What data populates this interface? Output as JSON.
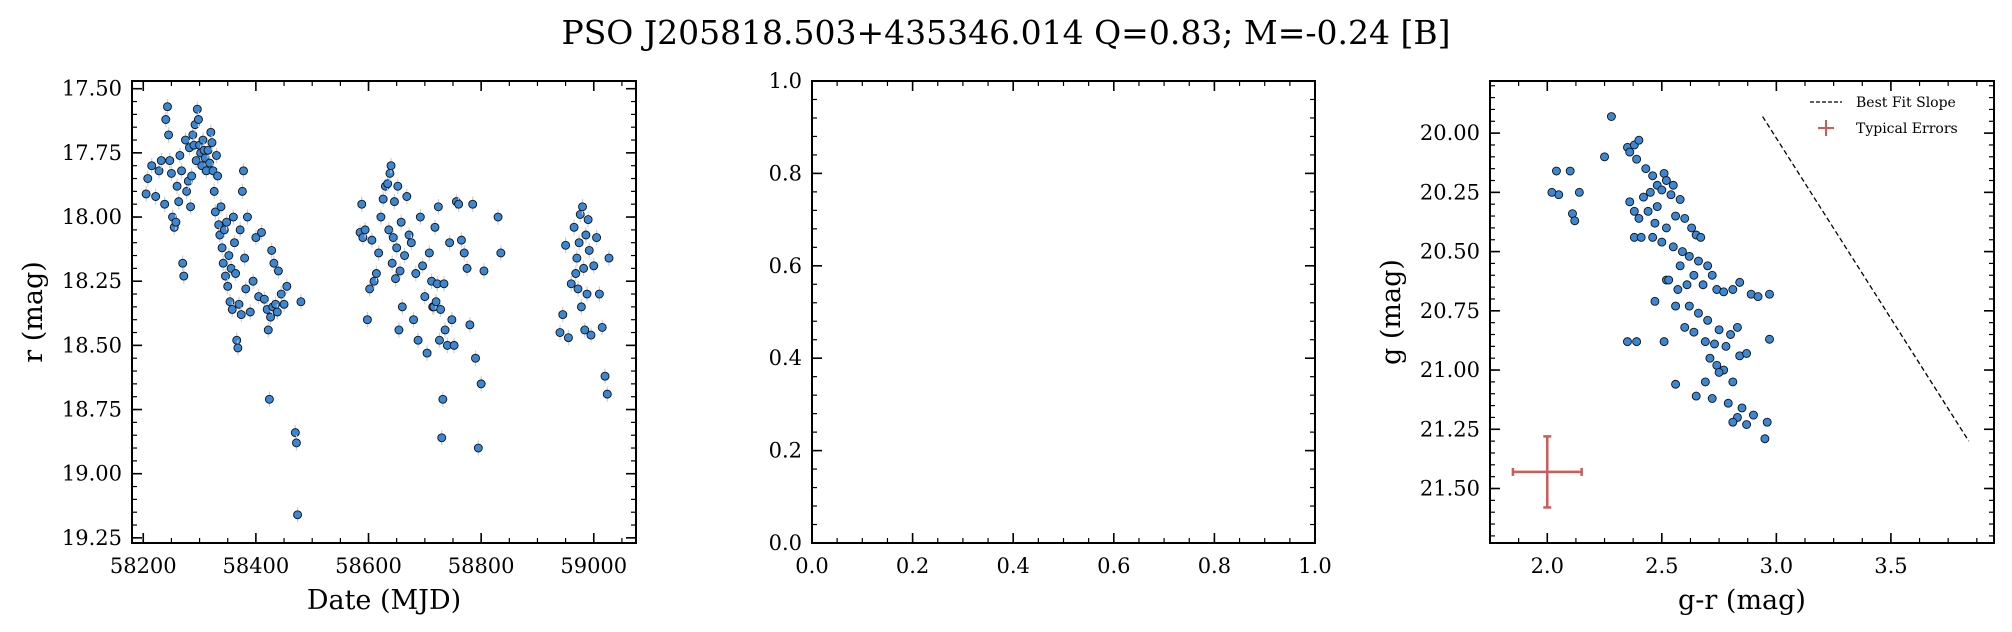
{
  "figure_title": "PSO J205818.503+435346.014  Q=0.83; M=-0.24 [B]",
  "colors": {
    "point_fill": "#3a87d6",
    "point_edge": "#111111",
    "error_bar": "#d0d0d0",
    "typical_error": "#d05a5a"
  },
  "chart_data": [
    {
      "type": "scatter",
      "xlabel": "Date (MJD)",
      "ylabel": "r (mag)",
      "xlim": [
        58180,
        59075
      ],
      "ylim": [
        19.27,
        17.47
      ],
      "y_inverted": true,
      "xticks": [
        58200,
        58400,
        58600,
        58800,
        59000
      ],
      "xtick_labels": [
        "58200",
        "58400",
        "58600",
        "58800",
        "59000"
      ],
      "yticks": [
        17.5,
        17.75,
        18.0,
        18.25,
        18.5,
        18.75,
        19.0,
        19.25
      ],
      "ytick_labels": [
        "17.50",
        "17.75",
        "18.00",
        "18.25",
        "18.50",
        "18.75",
        "19.00",
        "19.25"
      ],
      "points": [
        [
          58205,
          17.91
        ],
        [
          58208,
          17.85
        ],
        [
          58215,
          17.8
        ],
        [
          58222,
          17.92
        ],
        [
          58228,
          17.82
        ],
        [
          58232,
          17.78
        ],
        [
          58238,
          17.95
        ],
        [
          58240,
          17.62
        ],
        [
          58243,
          17.57
        ],
        [
          58245,
          17.68
        ],
        [
          58247,
          17.78
        ],
        [
          58250,
          17.83
        ],
        [
          58252,
          18.0
        ],
        [
          58255,
          18.04
        ],
        [
          58258,
          18.02
        ],
        [
          58260,
          17.88
        ],
        [
          58263,
          17.94
        ],
        [
          58265,
          17.76
        ],
        [
          58268,
          17.82
        ],
        [
          58270,
          18.18
        ],
        [
          58272,
          18.23
        ],
        [
          58275,
          17.7
        ],
        [
          58277,
          17.9
        ],
        [
          58280,
          17.86
        ],
        [
          58282,
          17.73
        ],
        [
          58284,
          17.96
        ],
        [
          58286,
          17.84
        ],
        [
          58288,
          17.68
        ],
        [
          58290,
          17.72
        ],
        [
          58292,
          17.64
        ],
        [
          58294,
          17.78
        ],
        [
          58296,
          17.58
        ],
        [
          58298,
          17.62
        ],
        [
          58300,
          17.72
        ],
        [
          58302,
          17.75
        ],
        [
          58304,
          17.8
        ],
        [
          58306,
          17.7
        ],
        [
          58308,
          17.74
        ],
        [
          58310,
          17.77
        ],
        [
          58312,
          17.82
        ],
        [
          58315,
          17.74
        ],
        [
          58318,
          17.79
        ],
        [
          58320,
          17.67
        ],
        [
          58322,
          17.71
        ],
        [
          58324,
          17.82
        ],
        [
          58326,
          17.9
        ],
        [
          58328,
          17.98
        ],
        [
          58330,
          17.76
        ],
        [
          58332,
          17.84
        ],
        [
          58334,
          18.03
        ],
        [
          58336,
          18.07
        ],
        [
          58338,
          17.96
        ],
        [
          58340,
          18.12
        ],
        [
          58342,
          18.18
        ],
        [
          58344,
          18.05
        ],
        [
          58346,
          18.23
        ],
        [
          58348,
          18.02
        ],
        [
          58350,
          18.27
        ],
        [
          58352,
          18.15
        ],
        [
          58354,
          18.33
        ],
        [
          58356,
          18.2
        ],
        [
          58358,
          18.36
        ],
        [
          58360,
          18.0
        ],
        [
          58362,
          18.1
        ],
        [
          58364,
          18.22
        ],
        [
          58366,
          18.48
        ],
        [
          58368,
          18.51
        ],
        [
          58370,
          18.34
        ],
        [
          58372,
          18.05
        ],
        [
          58374,
          18.38
        ],
        [
          58376,
          17.9
        ],
        [
          58378,
          17.82
        ],
        [
          58380,
          18.16
        ],
        [
          58382,
          18.28
        ],
        [
          58385,
          18.0
        ],
        [
          58390,
          18.37
        ],
        [
          58395,
          18.25
        ],
        [
          58400,
          18.08
        ],
        [
          58405,
          18.31
        ],
        [
          58410,
          18.06
        ],
        [
          58415,
          18.32
        ],
        [
          58420,
          18.36
        ],
        [
          58422,
          18.44
        ],
        [
          58424,
          18.71
        ],
        [
          58426,
          18.39
        ],
        [
          58428,
          18.13
        ],
        [
          58430,
          18.35
        ],
        [
          58432,
          18.18
        ],
        [
          58435,
          18.34
        ],
        [
          58438,
          18.37
        ],
        [
          58440,
          18.21
        ],
        [
          58445,
          18.3
        ],
        [
          58450,
          18.34
        ],
        [
          58455,
          18.27
        ],
        [
          58470,
          18.84
        ],
        [
          58472,
          18.88
        ],
        [
          58474,
          19.16
        ],
        [
          58480,
          18.33
        ],
        [
          58585,
          18.06
        ],
        [
          58588,
          17.95
        ],
        [
          58590,
          18.08
        ],
        [
          58594,
          18.05
        ],
        [
          58598,
          18.4
        ],
        [
          58602,
          18.28
        ],
        [
          58606,
          18.09
        ],
        [
          58610,
          18.25
        ],
        [
          58614,
          18.22
        ],
        [
          58618,
          18.14
        ],
        [
          58622,
          18.0
        ],
        [
          58626,
          17.93
        ],
        [
          58630,
          17.88
        ],
        [
          58634,
          17.87
        ],
        [
          58636,
          18.05
        ],
        [
          58638,
          17.83
        ],
        [
          58640,
          17.8
        ],
        [
          58642,
          18.18
        ],
        [
          58644,
          18.08
        ],
        [
          58646,
          17.94
        ],
        [
          58648,
          18.24
        ],
        [
          58650,
          18.12
        ],
        [
          58652,
          17.88
        ],
        [
          58654,
          18.44
        ],
        [
          58656,
          18.21
        ],
        [
          58658,
          18.02
        ],
        [
          58660,
          18.35
        ],
        [
          58664,
          18.15
        ],
        [
          58668,
          17.92
        ],
        [
          58672,
          18.07
        ],
        [
          58676,
          18.1
        ],
        [
          58680,
          18.4
        ],
        [
          58684,
          18.22
        ],
        [
          58688,
          18.48
        ],
        [
          58692,
          18.0
        ],
        [
          58696,
          18.19
        ],
        [
          58700,
          18.31
        ],
        [
          58704,
          18.53
        ],
        [
          58708,
          18.14
        ],
        [
          58712,
          18.25
        ],
        [
          58714,
          18.35
        ],
        [
          58716,
          18.35
        ],
        [
          58718,
          18.04
        ],
        [
          58720,
          18.33
        ],
        [
          58722,
          18.26
        ],
        [
          58724,
          17.96
        ],
        [
          58726,
          18.48
        ],
        [
          58728,
          18.36
        ],
        [
          58730,
          18.86
        ],
        [
          58732,
          18.71
        ],
        [
          58734,
          18.26
        ],
        [
          58736,
          18.44
        ],
        [
          58740,
          18.5
        ],
        [
          58744,
          18.1
        ],
        [
          58748,
          18.4
        ],
        [
          58752,
          18.5
        ],
        [
          58756,
          17.94
        ],
        [
          58760,
          17.95
        ],
        [
          58765,
          18.09
        ],
        [
          58770,
          18.14
        ],
        [
          58775,
          18.2
        ],
        [
          58780,
          18.42
        ],
        [
          58785,
          17.95
        ],
        [
          58790,
          18.55
        ],
        [
          58795,
          18.9
        ],
        [
          58800,
          18.65
        ],
        [
          58805,
          18.21
        ],
        [
          58830,
          18.0
        ],
        [
          58835,
          18.14
        ],
        [
          58940,
          18.45
        ],
        [
          58945,
          18.38
        ],
        [
          58950,
          18.11
        ],
        [
          58955,
          18.47
        ],
        [
          58960,
          18.26
        ],
        [
          58965,
          18.04
        ],
        [
          58968,
          18.22
        ],
        [
          58970,
          18.16
        ],
        [
          58972,
          18.28
        ],
        [
          58974,
          18.1
        ],
        [
          58976,
          17.99
        ],
        [
          58978,
          18.35
        ],
        [
          58980,
          17.96
        ],
        [
          58982,
          18.2
        ],
        [
          58984,
          18.44
        ],
        [
          58986,
          18.07
        ],
        [
          58988,
          18.3
        ],
        [
          58990,
          18.01
        ],
        [
          58992,
          18.13
        ],
        [
          58995,
          18.46
        ],
        [
          59000,
          18.19
        ],
        [
          59005,
          18.08
        ],
        [
          59010,
          18.3
        ],
        [
          59015,
          18.43
        ],
        [
          59020,
          18.62
        ],
        [
          59024,
          18.69
        ],
        [
          59027,
          18.16
        ]
      ]
    },
    {
      "type": "scatter",
      "xlim": [
        0,
        1
      ],
      "ylim": [
        0,
        1
      ],
      "xticks": [
        0,
        0.2,
        0.4,
        0.6,
        0.8,
        1.0
      ],
      "xtick_labels": [
        "0.0",
        "0.2",
        "0.4",
        "0.6",
        "0.8",
        "1.0"
      ],
      "yticks": [
        0,
        0.2,
        0.4,
        0.6,
        0.8,
        1.0
      ],
      "ytick_labels": [
        "0.0",
        "0.2",
        "0.4",
        "0.6",
        "0.8",
        "1.0"
      ],
      "points": []
    },
    {
      "type": "scatter",
      "xlabel": "g-r (mag)",
      "ylabel": "g (mag)",
      "xlim": [
        1.75,
        3.95
      ],
      "ylim": [
        21.73,
        19.78
      ],
      "y_inverted": true,
      "xticks": [
        2.0,
        2.5,
        3.0,
        3.5
      ],
      "xtick_labels": [
        "2.0",
        "2.5",
        "3.0",
        "3.5"
      ],
      "yticks": [
        20.0,
        20.25,
        20.5,
        20.75,
        21.0,
        21.25,
        21.5
      ],
      "ytick_labels": [
        "20.00",
        "20.25",
        "20.50",
        "20.75",
        "21.00",
        "21.25",
        "21.50"
      ],
      "legend_position": "top-right",
      "legend": [
        {
          "label": "Best Fit Slope",
          "style": "dashed-line"
        },
        {
          "label": "Typical Errors",
          "style": "errorbar"
        }
      ],
      "best_fit_line": [
        [
          2.94,
          19.93
        ],
        [
          3.84,
          21.3
        ]
      ],
      "typical_error": {
        "x": 2.0,
        "y": 21.43,
        "xerr": 0.15,
        "yerr": 0.15
      },
      "points": [
        [
          2.28,
          19.93
        ],
        [
          2.35,
          20.06
        ],
        [
          2.36,
          20.08
        ],
        [
          2.38,
          20.05
        ],
        [
          2.4,
          20.03
        ],
        [
          2.39,
          20.11
        ],
        [
          2.25,
          20.1
        ],
        [
          2.43,
          20.15
        ],
        [
          2.46,
          20.18
        ],
        [
          2.48,
          20.22
        ],
        [
          2.51,
          20.17
        ],
        [
          2.52,
          20.2
        ],
        [
          2.55,
          20.22
        ],
        [
          2.5,
          20.24
        ],
        [
          2.54,
          20.26
        ],
        [
          2.58,
          20.28
        ],
        [
          2.45,
          20.25
        ],
        [
          2.42,
          20.27
        ],
        [
          2.44,
          20.33
        ],
        [
          2.48,
          20.31
        ],
        [
          2.36,
          20.29
        ],
        [
          2.38,
          20.33
        ],
        [
          2.4,
          20.36
        ],
        [
          2.47,
          20.38
        ],
        [
          2.52,
          20.4
        ],
        [
          2.56,
          20.35
        ],
        [
          2.6,
          20.36
        ],
        [
          2.63,
          20.4
        ],
        [
          2.65,
          20.43
        ],
        [
          2.67,
          20.44
        ],
        [
          2.38,
          20.44
        ],
        [
          2.41,
          20.44
        ],
        [
          2.46,
          20.44
        ],
        [
          2.5,
          20.46
        ],
        [
          2.55,
          20.48
        ],
        [
          2.59,
          20.5
        ],
        [
          2.62,
          20.52
        ],
        [
          2.58,
          20.56
        ],
        [
          2.66,
          20.54
        ],
        [
          2.7,
          20.56
        ],
        [
          2.72,
          20.6
        ],
        [
          2.52,
          20.62
        ],
        [
          2.53,
          20.62
        ],
        [
          2.57,
          20.66
        ],
        [
          2.61,
          20.64
        ],
        [
          2.64,
          20.6
        ],
        [
          2.68,
          20.64
        ],
        [
          2.74,
          20.66
        ],
        [
          2.77,
          20.67
        ],
        [
          2.81,
          20.66
        ],
        [
          2.84,
          20.63
        ],
        [
          2.89,
          20.68
        ],
        [
          2.92,
          20.69
        ],
        [
          2.97,
          20.68
        ],
        [
          2.47,
          20.71
        ],
        [
          2.56,
          20.73
        ],
        [
          2.62,
          20.73
        ],
        [
          2.66,
          20.76
        ],
        [
          2.7,
          20.79
        ],
        [
          2.75,
          20.83
        ],
        [
          2.8,
          20.85
        ],
        [
          2.83,
          20.82
        ],
        [
          2.6,
          20.82
        ],
        [
          2.64,
          20.84
        ],
        [
          2.69,
          20.88
        ],
        [
          2.73,
          20.89
        ],
        [
          2.78,
          20.9
        ],
        [
          2.84,
          20.94
        ],
        [
          2.87,
          20.93
        ],
        [
          2.97,
          20.87
        ],
        [
          2.35,
          20.88
        ],
        [
          2.39,
          20.88
        ],
        [
          2.51,
          20.88
        ],
        [
          2.71,
          20.95
        ],
        [
          2.74,
          20.98
        ],
        [
          2.77,
          21.0
        ],
        [
          2.75,
          21.01
        ],
        [
          2.81,
          21.05
        ],
        [
          2.69,
          21.05
        ],
        [
          2.56,
          21.06
        ],
        [
          2.65,
          21.11
        ],
        [
          2.72,
          21.12
        ],
        [
          2.79,
          21.14
        ],
        [
          2.85,
          21.16
        ],
        [
          2.9,
          21.19
        ],
        [
          2.83,
          21.2
        ],
        [
          2.87,
          21.23
        ],
        [
          2.96,
          21.22
        ],
        [
          2.95,
          21.29
        ],
        [
          2.81,
          21.22
        ],
        [
          2.04,
          20.16
        ],
        [
          2.1,
          20.16
        ],
        [
          2.14,
          20.25
        ],
        [
          2.05,
          20.26
        ],
        [
          2.02,
          20.25
        ],
        [
          2.11,
          20.34
        ],
        [
          2.12,
          20.37
        ]
      ]
    }
  ]
}
